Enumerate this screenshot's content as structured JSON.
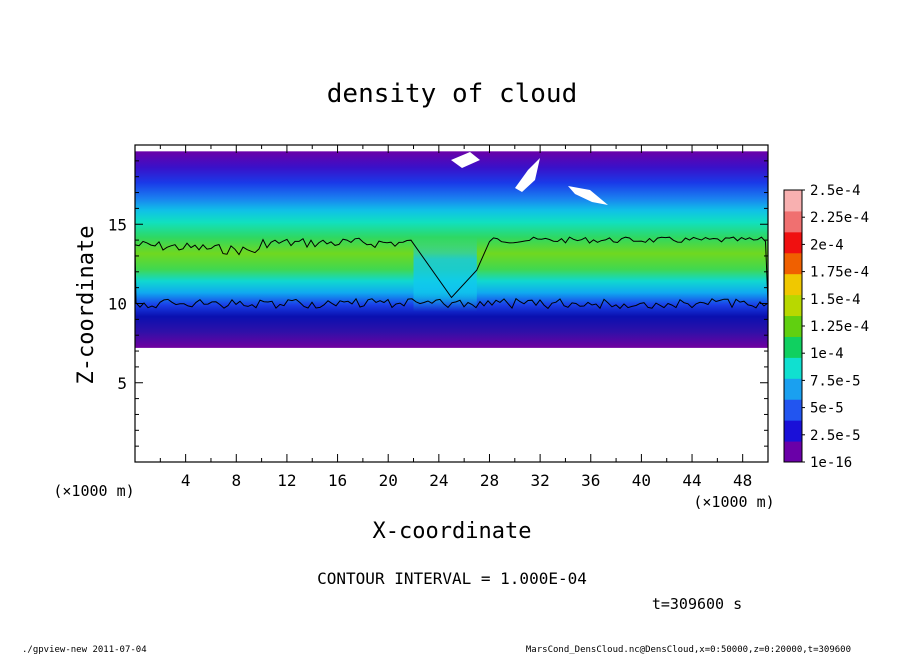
{
  "chart_data": {
    "type": "heatmap",
    "title": "density of cloud",
    "xlabel": "X-coordinate",
    "ylabel": "Z-coordinate",
    "x_unit": "(×1000 m)",
    "y_unit": "(×1000 m)",
    "xlim": [
      0,
      50
    ],
    "ylim": [
      0,
      20
    ],
    "x_ticks": [
      4,
      8,
      12,
      16,
      20,
      24,
      28,
      32,
      36,
      40,
      44,
      48
    ],
    "y_ticks": [
      5,
      10,
      15
    ],
    "colorbar": {
      "labels": [
        "1e-16",
        "2.5e-5",
        "5e-5",
        "7.5e-5",
        "1e-4",
        "1.25e-4",
        "1.5e-4",
        "1.75e-4",
        "2e-4",
        "2.25e-4",
        "2.5e-4"
      ],
      "colors": [
        "#6a00a8",
        "#1a10d8",
        "#2255f0",
        "#1aa0f0",
        "#10e0d0",
        "#10d060",
        "#60d010",
        "#b8d800",
        "#f0c800",
        "#f06000",
        "#f01010",
        "#f07070",
        "#f8b0b0"
      ]
    },
    "contour_interval": "CONTOUR INTERVAL = 1.000E-04",
    "time": "t=309600 s",
    "cloud_layer": {
      "cloud_base_z": 7.2,
      "cloud_top_z": 19.6,
      "contour_1e-4_bottom_z": 10.0,
      "contour_1e-4_top_left_z": 13.7,
      "contour_1e-4_top_right_z": 14.0,
      "clear_gap_x": [
        22,
        27
      ]
    }
  },
  "footer": {
    "left": "./gpview-new  2011-07-04",
    "right": "MarsCond_DensCloud.nc@DensCloud,x=0:50000,z=0:20000,t=309600"
  }
}
